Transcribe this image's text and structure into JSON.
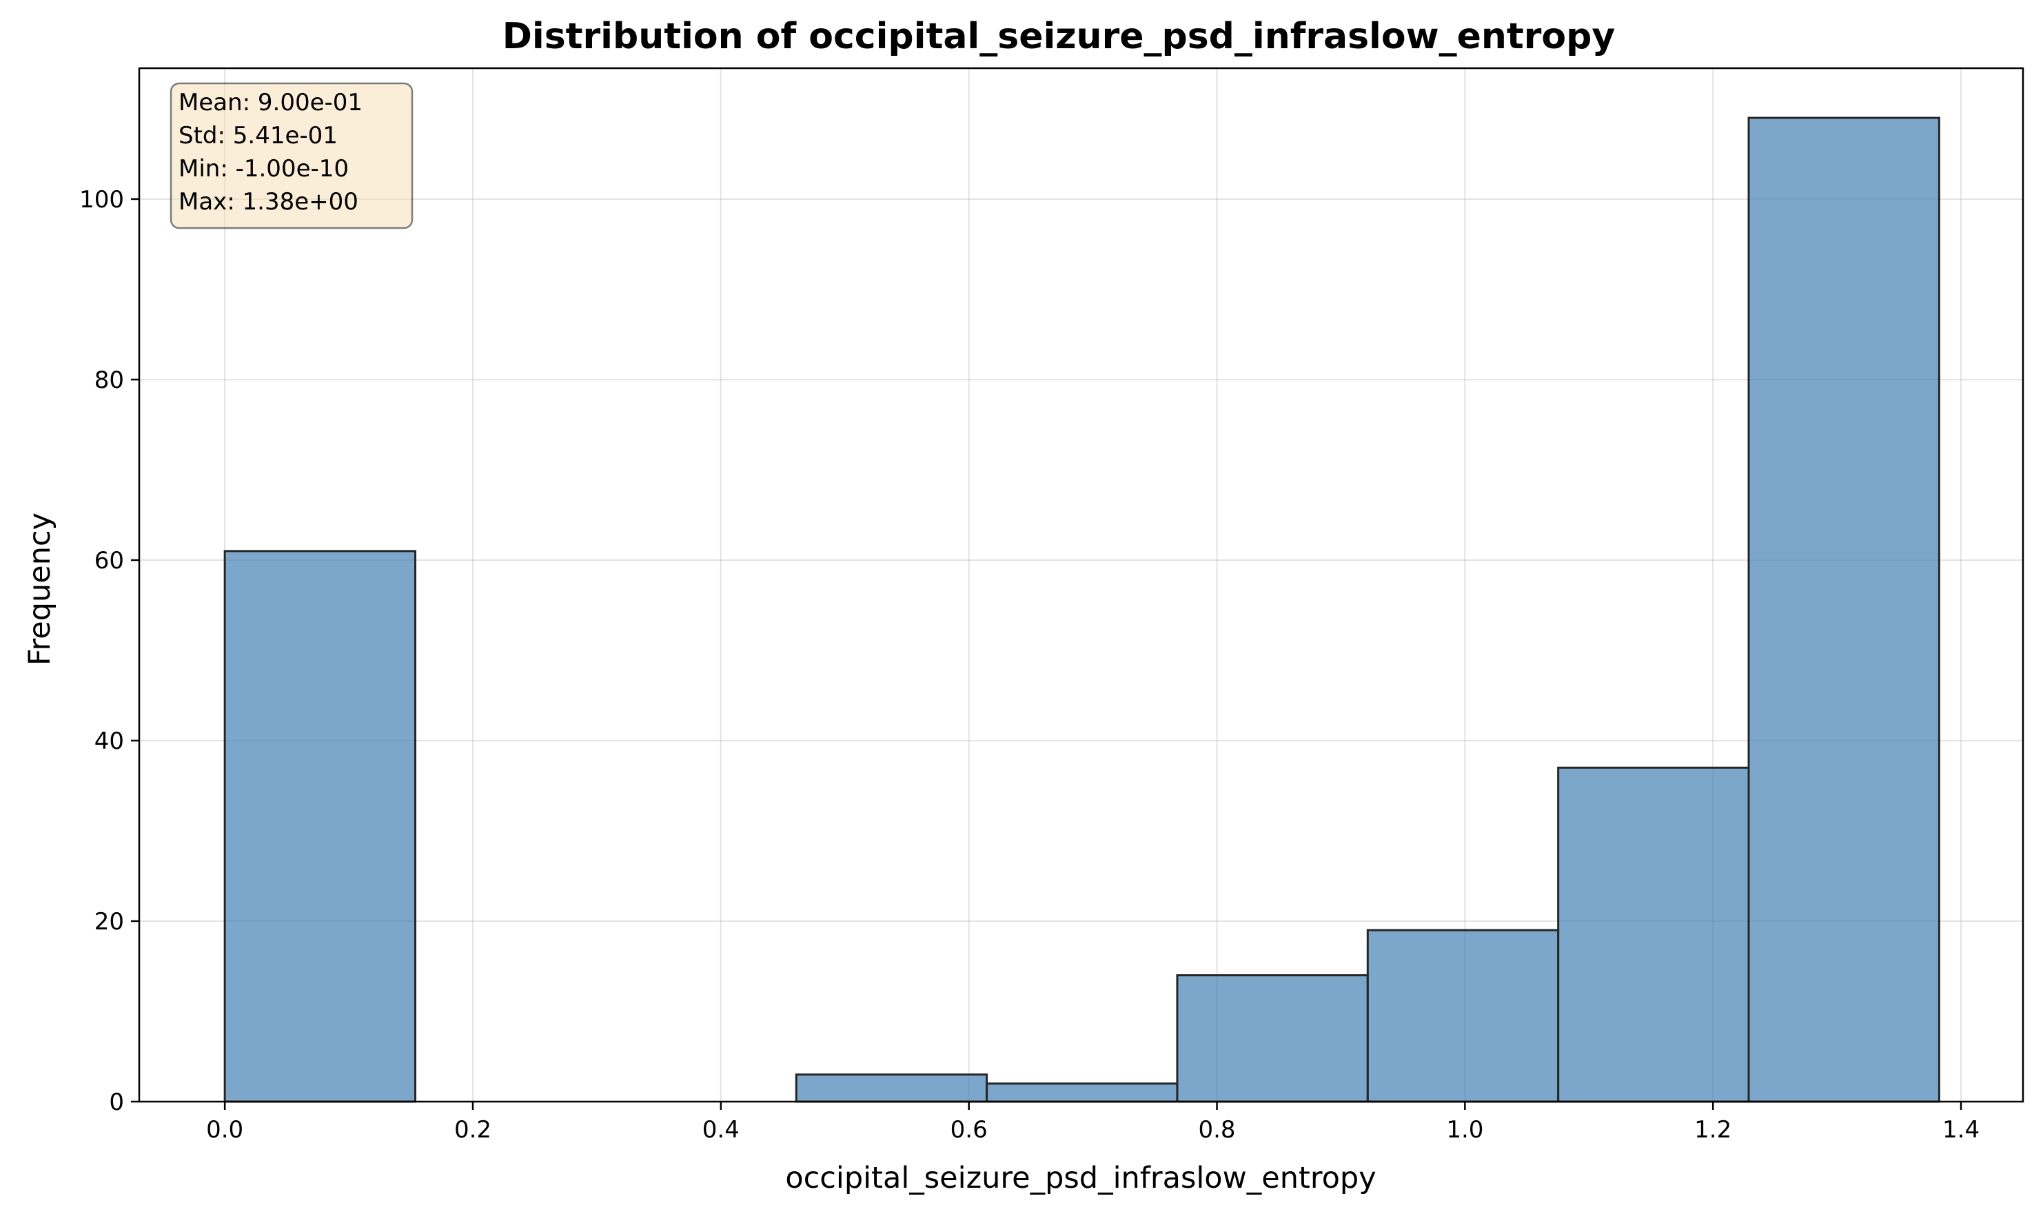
{
  "chart_data": {
    "type": "bar",
    "subtype": "histogram",
    "title": "Distribution of occipital_seizure_psd_infraslow_entropy",
    "xlabel": "occipital_seizure_psd_infraslow_entropy",
    "ylabel": "Frequency",
    "xlim": [
      -0.069,
      1.45
    ],
    "ylim": [
      0,
      114.5
    ],
    "xticks": [
      0.0,
      0.2,
      0.4,
      0.6,
      0.8,
      1.0,
      1.2,
      1.4
    ],
    "xtick_labels": [
      "0.0",
      "0.2",
      "0.4",
      "0.6",
      "0.8",
      "1.0",
      "1.2",
      "1.4"
    ],
    "yticks": [
      0,
      20,
      40,
      60,
      80,
      100
    ],
    "ytick_labels": [
      "0",
      "20",
      "40",
      "60",
      "80",
      "100"
    ],
    "grid": true,
    "bar_color": "#4682b4",
    "bar_opacity": 0.7,
    "edge_color": "#262626",
    "bins": [
      {
        "x0": 0.0,
        "x1": 0.1536,
        "count": 61
      },
      {
        "x0": 0.1536,
        "x1": 0.3072,
        "count": 0
      },
      {
        "x0": 0.3072,
        "x1": 0.4608,
        "count": 0
      },
      {
        "x0": 0.4608,
        "x1": 0.6144,
        "count": 3
      },
      {
        "x0": 0.6144,
        "x1": 0.768,
        "count": 2
      },
      {
        "x0": 0.768,
        "x1": 0.9216,
        "count": 14
      },
      {
        "x0": 0.9216,
        "x1": 1.0752,
        "count": 19
      },
      {
        "x0": 1.0752,
        "x1": 1.2288,
        "count": 37
      },
      {
        "x0": 1.2288,
        "x1": 1.3824,
        "count": 109
      }
    ],
    "stats_box": {
      "lines": [
        "Mean: 9.00e-01",
        "Std: 5.41e-01",
        "Min: -1.00e-10",
        "Max: 1.38e+00"
      ],
      "placement": "top-left",
      "background": "#f5deb3",
      "border": "#000000"
    }
  }
}
